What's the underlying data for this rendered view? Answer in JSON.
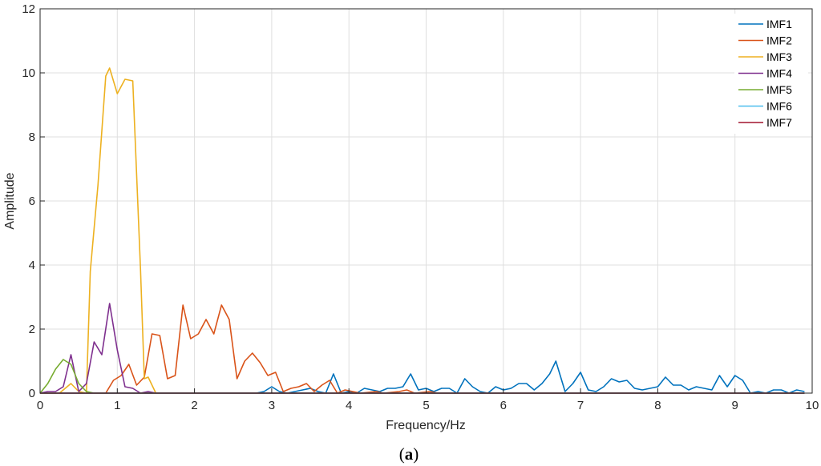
{
  "chart_data": {
    "type": "line",
    "xlabel": "Frequency/Hz",
    "ylabel": "Amplitude",
    "xlim": [
      0,
      10
    ],
    "ylim": [
      0,
      12
    ],
    "xticks": [
      "0",
      "1",
      "2",
      "3",
      "4",
      "5",
      "6",
      "7",
      "8",
      "9",
      "10"
    ],
    "yticks": [
      "0",
      "2",
      "4",
      "6",
      "8",
      "10",
      "12"
    ],
    "grid": true,
    "legend_position": "top-right",
    "series": [
      {
        "name": "IMF1",
        "color": "#0072BD",
        "points": [
          [
            0,
            0
          ],
          [
            2.8,
            0
          ],
          [
            2.9,
            0.05
          ],
          [
            3.0,
            0.2
          ],
          [
            3.1,
            0.05
          ],
          [
            3.2,
            0
          ],
          [
            3.3,
            0.05
          ],
          [
            3.4,
            0.1
          ],
          [
            3.5,
            0.15
          ],
          [
            3.6,
            0.05
          ],
          [
            3.7,
            0
          ],
          [
            3.8,
            0.6
          ],
          [
            3.9,
            0
          ],
          [
            4.0,
            0.05
          ],
          [
            4.1,
            0
          ],
          [
            4.2,
            0.15
          ],
          [
            4.3,
            0.1
          ],
          [
            4.4,
            0.05
          ],
          [
            4.5,
            0.15
          ],
          [
            4.6,
            0.15
          ],
          [
            4.7,
            0.2
          ],
          [
            4.8,
            0.6
          ],
          [
            4.9,
            0.1
          ],
          [
            5.0,
            0.15
          ],
          [
            5.1,
            0.05
          ],
          [
            5.2,
            0.15
          ],
          [
            5.3,
            0.15
          ],
          [
            5.4,
            0
          ],
          [
            5.5,
            0.45
          ],
          [
            5.6,
            0.2
          ],
          [
            5.7,
            0.05
          ],
          [
            5.8,
            0
          ],
          [
            5.9,
            0.2
          ],
          [
            6.0,
            0.1
          ],
          [
            6.1,
            0.15
          ],
          [
            6.2,
            0.3
          ],
          [
            6.3,
            0.3
          ],
          [
            6.4,
            0.1
          ],
          [
            6.5,
            0.3
          ],
          [
            6.6,
            0.6
          ],
          [
            6.68,
            1.0
          ],
          [
            6.8,
            0.05
          ],
          [
            6.9,
            0.3
          ],
          [
            7.0,
            0.65
          ],
          [
            7.1,
            0.1
          ],
          [
            7.2,
            0.05
          ],
          [
            7.3,
            0.2
          ],
          [
            7.4,
            0.45
          ],
          [
            7.5,
            0.35
          ],
          [
            7.6,
            0.4
          ],
          [
            7.7,
            0.15
          ],
          [
            7.8,
            0.1
          ],
          [
            7.9,
            0.15
          ],
          [
            8.0,
            0.2
          ],
          [
            8.1,
            0.5
          ],
          [
            8.2,
            0.25
          ],
          [
            8.3,
            0.25
          ],
          [
            8.4,
            0.1
          ],
          [
            8.5,
            0.2
          ],
          [
            8.6,
            0.15
          ],
          [
            8.7,
            0.1
          ],
          [
            8.8,
            0.55
          ],
          [
            8.9,
            0.2
          ],
          [
            9.0,
            0.55
          ],
          [
            9.1,
            0.4
          ],
          [
            9.2,
            0
          ],
          [
            9.3,
            0.05
          ],
          [
            9.4,
            0
          ],
          [
            9.5,
            0.1
          ],
          [
            9.6,
            0.1
          ],
          [
            9.7,
            0
          ],
          [
            9.8,
            0.1
          ],
          [
            9.9,
            0.05
          ]
        ]
      },
      {
        "name": "IMF2",
        "color": "#D95319",
        "points": [
          [
            0,
            0
          ],
          [
            0.85,
            0
          ],
          [
            0.95,
            0.4
          ],
          [
            1.05,
            0.55
          ],
          [
            1.15,
            0.9
          ],
          [
            1.25,
            0.25
          ],
          [
            1.35,
            0.5
          ],
          [
            1.45,
            1.85
          ],
          [
            1.55,
            1.8
          ],
          [
            1.65,
            0.45
          ],
          [
            1.75,
            0.55
          ],
          [
            1.85,
            2.75
          ],
          [
            1.95,
            1.7
          ],
          [
            2.05,
            1.85
          ],
          [
            2.15,
            2.3
          ],
          [
            2.25,
            1.85
          ],
          [
            2.35,
            2.75
          ],
          [
            2.45,
            2.3
          ],
          [
            2.55,
            0.45
          ],
          [
            2.65,
            1.0
          ],
          [
            2.75,
            1.25
          ],
          [
            2.85,
            0.95
          ],
          [
            2.95,
            0.55
          ],
          [
            3.05,
            0.65
          ],
          [
            3.15,
            0.05
          ],
          [
            3.25,
            0.15
          ],
          [
            3.35,
            0.2
          ],
          [
            3.45,
            0.3
          ],
          [
            3.55,
            0.05
          ],
          [
            3.65,
            0.25
          ],
          [
            3.75,
            0.4
          ],
          [
            3.85,
            0
          ],
          [
            3.95,
            0.1
          ],
          [
            4.05,
            0.05
          ],
          [
            4.15,
            0
          ],
          [
            4.35,
            0.05
          ],
          [
            4.45,
            0
          ],
          [
            4.65,
            0.05
          ],
          [
            4.75,
            0.1
          ],
          [
            4.85,
            0
          ],
          [
            5.05,
            0.05
          ],
          [
            5.15,
            0
          ],
          [
            9.9,
            0
          ]
        ]
      },
      {
        "name": "IMF3",
        "color": "#EDB120",
        "points": [
          [
            0,
            0
          ],
          [
            0.25,
            0
          ],
          [
            0.4,
            0.3
          ],
          [
            0.5,
            0.05
          ],
          [
            0.6,
            0
          ],
          [
            0.65,
            3.8
          ],
          [
            0.75,
            6.5
          ],
          [
            0.85,
            9.9
          ],
          [
            0.9,
            10.15
          ],
          [
            1.0,
            9.35
          ],
          [
            1.1,
            9.8
          ],
          [
            1.2,
            9.75
          ],
          [
            1.3,
            3.9
          ],
          [
            1.35,
            0.45
          ],
          [
            1.4,
            0.5
          ],
          [
            1.5,
            0
          ],
          [
            9.9,
            0
          ]
        ]
      },
      {
        "name": "IMF4",
        "color": "#7E2F8E",
        "points": [
          [
            0,
            0
          ],
          [
            0.1,
            0.05
          ],
          [
            0.2,
            0.05
          ],
          [
            0.3,
            0.2
          ],
          [
            0.4,
            1.2
          ],
          [
            0.5,
            0.05
          ],
          [
            0.6,
            0.3
          ],
          [
            0.7,
            1.6
          ],
          [
            0.8,
            1.2
          ],
          [
            0.9,
            2.8
          ],
          [
            1.0,
            1.35
          ],
          [
            1.1,
            0.2
          ],
          [
            1.2,
            0.15
          ],
          [
            1.3,
            0
          ],
          [
            1.4,
            0.05
          ],
          [
            1.5,
            0
          ],
          [
            9.9,
            0
          ]
        ]
      },
      {
        "name": "IMF5",
        "color": "#77AC30",
        "points": [
          [
            0,
            0
          ],
          [
            0.1,
            0.3
          ],
          [
            0.2,
            0.75
          ],
          [
            0.3,
            1.05
          ],
          [
            0.4,
            0.9
          ],
          [
            0.5,
            0.3
          ],
          [
            0.6,
            0.05
          ],
          [
            0.7,
            0
          ],
          [
            9.9,
            0
          ]
        ]
      },
      {
        "name": "IMF6",
        "color": "#4DBEEE",
        "points": [
          [
            0,
            0
          ],
          [
            9.9,
            0
          ]
        ]
      },
      {
        "name": "IMF7",
        "color": "#A2142F",
        "points": [
          [
            0,
            0
          ],
          [
            9.9,
            0
          ]
        ]
      }
    ]
  },
  "caption": {
    "open": "(",
    "letter": "a",
    "close": ")"
  }
}
